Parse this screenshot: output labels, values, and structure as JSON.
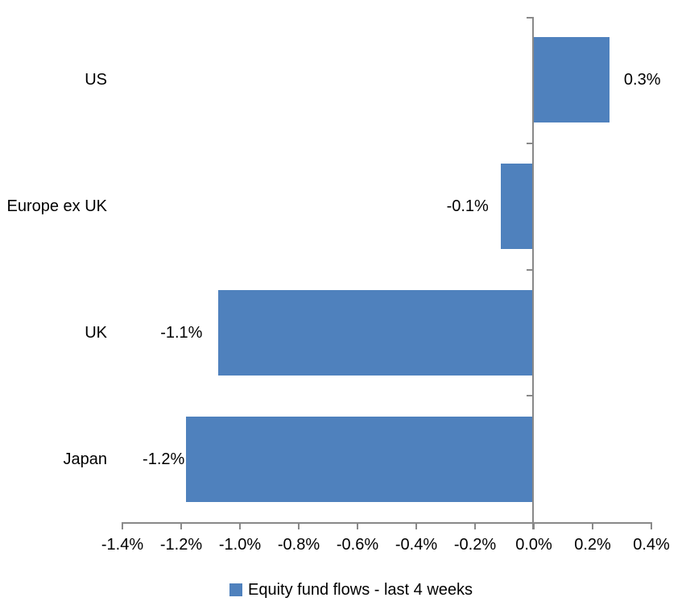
{
  "chart_data": {
    "type": "bar",
    "orientation": "horizontal",
    "title": "",
    "categories": [
      "US",
      "Europe ex UK",
      "UK",
      "Japan"
    ],
    "values": [
      0.3,
      -0.1,
      -1.1,
      -1.2
    ],
    "data_labels": [
      "0.3%",
      "-0.1%",
      "-1.1%",
      "-1.2%"
    ],
    "bar_values_precise": [
      0.26,
      -0.11,
      -1.07,
      -1.18
    ],
    "series": [
      {
        "name": "Equity fund flows - last 4 weeks",
        "values": [
          0.3,
          -0.1,
          -1.1,
          -1.2
        ]
      }
    ],
    "x_axis": {
      "min": -1.4,
      "max": 0.4,
      "tick_values": [
        -1.4,
        -1.2,
        -1.0,
        -0.8,
        -0.6,
        -0.4,
        -0.2,
        0.0,
        0.2,
        0.4
      ],
      "tick_labels": [
        "-1.4%",
        "-1.2%",
        "-1.0%",
        "-0.8%",
        "-0.6%",
        "-0.4%",
        "-0.2%",
        "0.0%",
        "0.2%",
        "0.4%"
      ]
    },
    "grid": false,
    "legend": {
      "position": "bottom",
      "entries": [
        {
          "label": "Equity fund flows - last 4 weeks",
          "color": "#4F81BD"
        }
      ]
    },
    "colors": {
      "bar": "#4F81BD",
      "axis": "#898989",
      "text": "#000000",
      "background": "#FFFFFF"
    }
  }
}
